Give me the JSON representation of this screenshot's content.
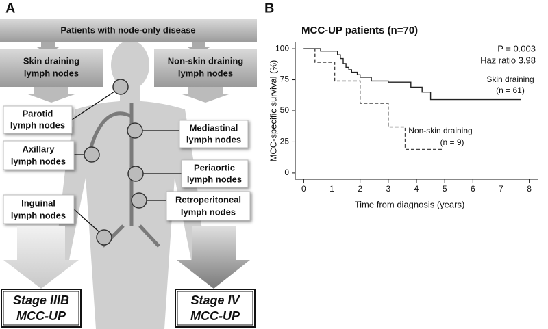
{
  "panel_a": {
    "label": "A",
    "header": "Patients with node-only disease",
    "groups": [
      {
        "lines": [
          "Skin draining",
          "lymph nodes"
        ]
      },
      {
        "lines": [
          "Non-skin draining",
          "lymph nodes"
        ]
      }
    ],
    "nodes": [
      {
        "lines": [
          "Parotid",
          "lymph nodes"
        ]
      },
      {
        "lines": [
          "Axillary",
          "lymph nodes"
        ]
      },
      {
        "lines": [
          "Inguinal",
          "lymph nodes"
        ]
      },
      {
        "lines": [
          "Mediastinal",
          "lymph nodes"
        ]
      },
      {
        "lines": [
          "Periaortic",
          "lymph nodes"
        ]
      },
      {
        "lines": [
          "Retroperitoneal",
          "lymph nodes"
        ]
      }
    ],
    "stages": [
      {
        "lines": [
          "Stage IIIB",
          "MCC-UP"
        ]
      },
      {
        "lines": [
          "Stage IV",
          "MCC-UP"
        ]
      }
    ]
  },
  "chart_data": {
    "type": "step",
    "panel_label": "B",
    "title": "MCC-UP patients (n=70)",
    "xlabel": "Time from diagnosis (years)",
    "ylabel": "MCC-specific survival (%)",
    "xlim": [
      -0.3,
      8.3
    ],
    "ylim": [
      -5,
      105
    ],
    "xticks": [
      0,
      1,
      2,
      3,
      4,
      5,
      6,
      7,
      8
    ],
    "yticks": [
      0,
      25,
      50,
      75,
      100
    ],
    "annotations": [
      "P = 0.003",
      "Haz ratio 3.98"
    ],
    "series": [
      {
        "name": "Skin draining",
        "n_label": "(n = 61)",
        "color": "#222222",
        "dash": false,
        "x": [
          0,
          0.6,
          0.6,
          1.2,
          1.2,
          1.3,
          1.3,
          1.4,
          1.4,
          1.5,
          1.5,
          1.6,
          1.6,
          1.7,
          1.7,
          1.9,
          1.9,
          2.0,
          2.0,
          2.4,
          2.4,
          3.0,
          3.0,
          3.8,
          3.8,
          4.2,
          4.2,
          4.5,
          4.5,
          5.7,
          5.7,
          7.7
        ],
        "values": [
          100,
          100,
          98,
          98,
          95,
          95,
          92,
          92,
          88,
          88,
          85,
          85,
          83,
          83,
          81,
          81,
          79,
          79,
          77,
          77,
          74,
          74,
          73,
          73,
          69,
          69,
          65,
          65,
          59,
          59,
          59,
          59
        ]
      },
      {
        "name": "Non-skin draining",
        "n_label": "(n = 9)",
        "color": "#444444",
        "dash": true,
        "x": [
          0,
          0.4,
          0.4,
          1.1,
          1.1,
          2.0,
          2.0,
          3.0,
          3.0,
          3.6,
          3.6,
          4.9
        ],
        "values": [
          100,
          100,
          89,
          89,
          74,
          74,
          56,
          56,
          37,
          37,
          19,
          19
        ]
      }
    ]
  }
}
